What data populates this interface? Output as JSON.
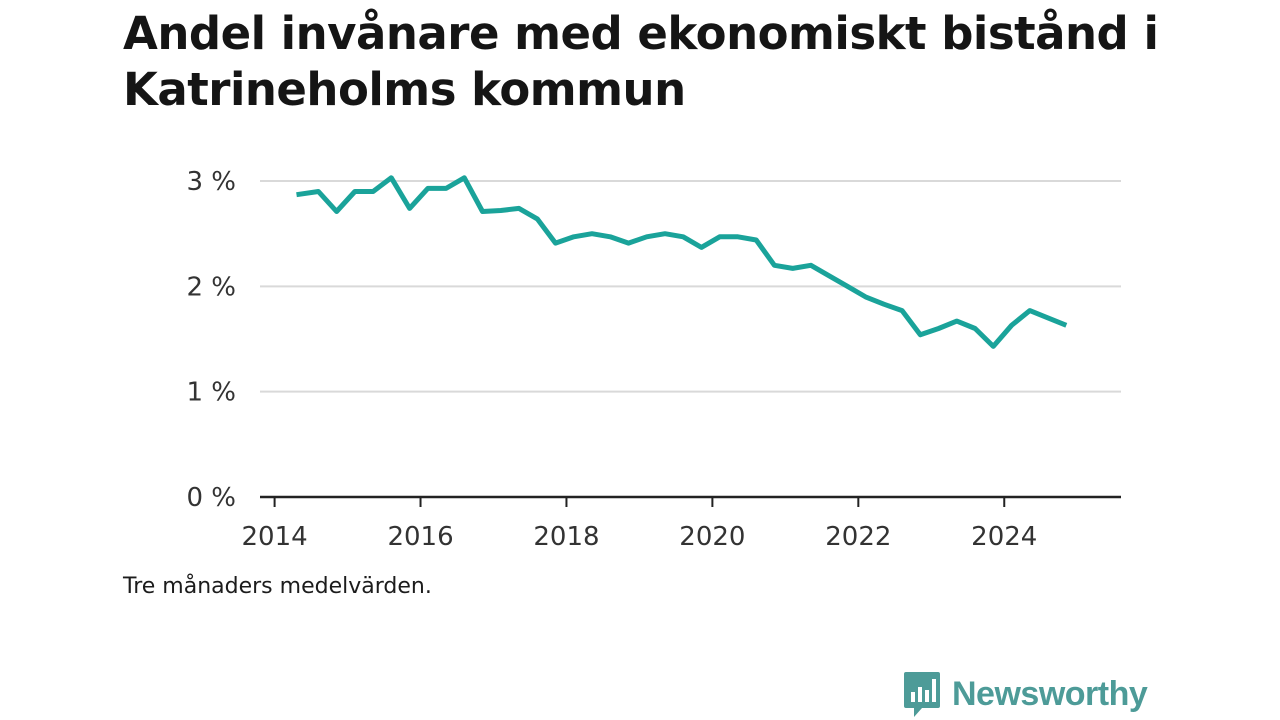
{
  "title": "Andel invånare med ekonomiskt bistånd i Katrineholms kommun",
  "note": "Tre månaders medelvärden.",
  "brand": {
    "name": "Newsworthy",
    "color": "#4d9b98",
    "logo_icon": "bar-chart-speech-bubble-icon"
  },
  "colors": {
    "line": "#1aa39a",
    "grid": "#d9d9d9",
    "axis": "#222222",
    "tick_text": "#333333"
  },
  "chart_data": {
    "type": "line",
    "title": "Andel invånare med ekonomiskt bistånd i Katrineholms kommun",
    "xlabel": "",
    "ylabel": "",
    "x_ticks": [
      "2014",
      "2016",
      "2018",
      "2020",
      "2022",
      "2024"
    ],
    "y_ticks": [
      "0 %",
      "1 %",
      "2 %",
      "3 %"
    ],
    "xlim": [
      2013.8,
      2025.6
    ],
    "ylim": [
      0,
      3
    ],
    "grid": true,
    "legend": "none",
    "series": [
      {
        "x": [
          2014.3,
          2014.6,
          2014.85,
          2015.1,
          2015.35,
          2015.6,
          2015.85,
          2016.1,
          2016.35,
          2016.6,
          2016.85,
          2017.1,
          2017.35,
          2017.6,
          2017.85,
          2018.1,
          2018.35,
          2018.6,
          2018.85,
          2019.1,
          2019.35,
          2019.6,
          2019.85,
          2020.1,
          2020.35,
          2020.6,
          2020.85,
          2021.1,
          2021.35,
          2021.6,
          2021.85,
          2022.1,
          2022.35,
          2022.6,
          2022.85,
          2023.1,
          2023.35,
          2023.6,
          2023.85,
          2024.1,
          2024.35,
          2024.6,
          2024.85
        ],
        "y": [
          2.87,
          2.9,
          2.71,
          2.9,
          2.9,
          3.03,
          2.74,
          2.93,
          2.93,
          3.03,
          2.71,
          2.72,
          2.74,
          2.64,
          2.41,
          2.47,
          2.5,
          2.47,
          2.41,
          2.47,
          2.5,
          2.47,
          2.37,
          2.47,
          2.47,
          2.44,
          2.2,
          2.17,
          2.2,
          2.1,
          2.0,
          1.9,
          1.83,
          1.77,
          1.54,
          1.6,
          1.67,
          1.6,
          1.43,
          1.63,
          1.77,
          1.7,
          1.63
        ]
      }
    ]
  }
}
